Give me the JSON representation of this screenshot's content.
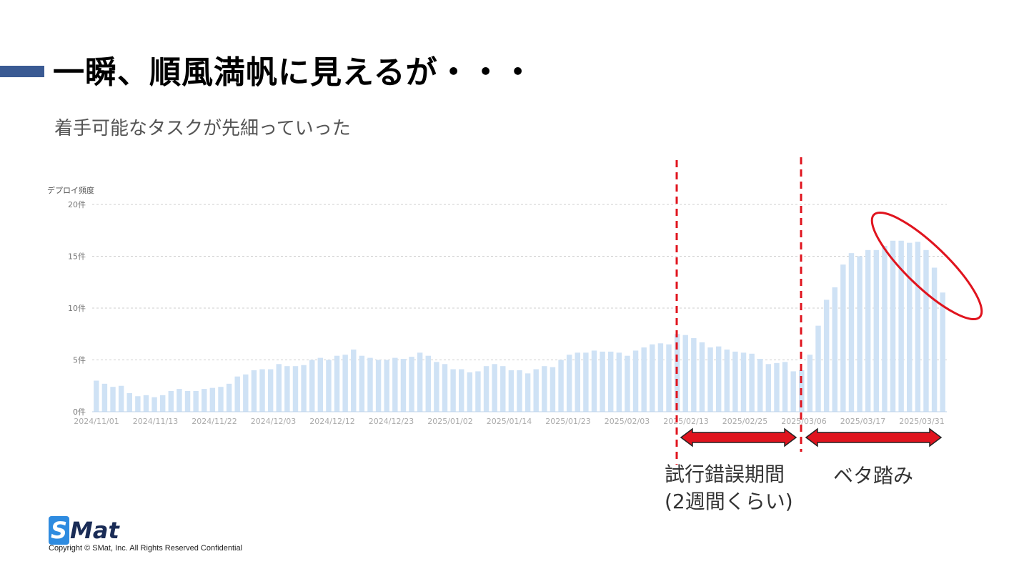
{
  "slide": {
    "title": "一瞬、順風満帆に見えるが・・・",
    "subtitle": "着手可能なタスクが先細っていった",
    "annotations": {
      "trial_label": "試行錯誤期間",
      "trial_sub": "(2週間くらい)",
      "beta_label": "ベタ踏み"
    },
    "logo": {
      "s": "S",
      "rest": "Mat"
    },
    "copyright": "Copyright © SMat, Inc. All Rights Reserved Confidential",
    "colors": {
      "accent_bar": "#3a5a93",
      "bar": "#cfe2f5",
      "annotation_red": "#e0141e"
    }
  },
  "chart_data": {
    "type": "bar",
    "ylabel": "デプロイ頻度",
    "ylim": [
      0,
      20
    ],
    "yticks": [
      "0件",
      "5件",
      "10件",
      "15件",
      "20件"
    ],
    "ytick_values": [
      0,
      5,
      10,
      15,
      20
    ],
    "grid": true,
    "x_tick_labels": [
      "2024/11/01",
      "2024/11/13",
      "2024/11/22",
      "2024/12/03",
      "2024/12/12",
      "2024/12/23",
      "2025/01/02",
      "2025/01/14",
      "2025/01/23",
      "2025/02/03",
      "2025/02/13",
      "2025/02/25",
      "2025/03/06",
      "2025/03/17",
      "2025/03/31"
    ],
    "values": [
      3.0,
      2.7,
      2.4,
      2.5,
      1.8,
      1.5,
      1.6,
      1.4,
      1.6,
      2.0,
      2.2,
      2.0,
      2.0,
      2.2,
      2.3,
      2.4,
      2.7,
      3.4,
      3.6,
      4.0,
      4.1,
      4.1,
      4.6,
      4.4,
      4.4,
      4.5,
      5.0,
      5.2,
      5.0,
      5.4,
      5.5,
      6.0,
      5.4,
      5.2,
      5.0,
      5.0,
      5.2,
      5.1,
      5.3,
      5.7,
      5.4,
      4.8,
      4.6,
      4.1,
      4.1,
      3.8,
      3.9,
      4.4,
      4.6,
      4.4,
      4.0,
      4.0,
      3.7,
      4.1,
      4.4,
      4.3,
      5.0,
      5.5,
      5.7,
      5.7,
      5.9,
      5.8,
      5.8,
      5.7,
      5.4,
      5.9,
      6.2,
      6.5,
      6.6,
      6.5,
      7.5,
      7.4,
      7.1,
      6.7,
      6.2,
      6.3,
      6.0,
      5.8,
      5.7,
      5.6,
      5.1,
      4.6,
      4.7,
      4.8,
      3.9,
      4.0,
      5.5,
      8.3,
      10.8,
      12.0,
      14.2,
      15.3,
      15.0,
      15.6,
      15.6,
      16.0,
      16.5,
      16.5,
      16.3,
      16.4,
      15.6,
      13.9,
      11.5
    ]
  }
}
